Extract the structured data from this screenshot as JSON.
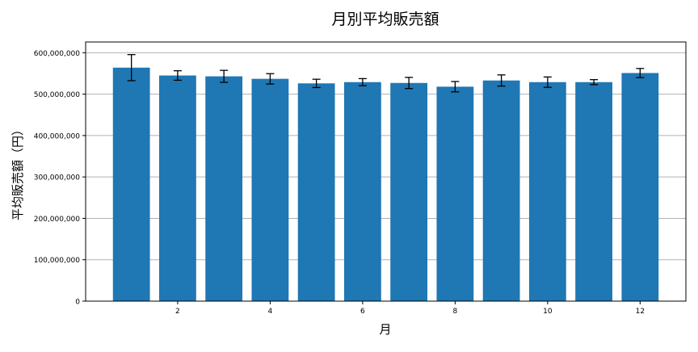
{
  "chart_data": {
    "type": "bar",
    "title": "月別平均販売額",
    "xlabel": "月",
    "ylabel": "平均販売額（円）",
    "x": [
      1,
      2,
      3,
      4,
      5,
      6,
      7,
      8,
      9,
      10,
      11,
      12
    ],
    "values": [
      564000000,
      545000000,
      543000000,
      537000000,
      526000000,
      529000000,
      527000000,
      518000000,
      533000000,
      529000000,
      529000000,
      551000000
    ],
    "errors": [
      31500000,
      11500000,
      14500000,
      12500000,
      10000000,
      8500000,
      13500000,
      12500000,
      13500000,
      12500000,
      6000000,
      11000000
    ],
    "xticks": [
      2,
      4,
      6,
      8,
      10,
      12
    ],
    "yticks": [
      0,
      100000000,
      200000000,
      300000000,
      400000000,
      500000000,
      600000000
    ],
    "ytick_labels": [
      "0",
      "100,000,000",
      "200,000,000",
      "300,000,000",
      "400,000,000",
      "500,000,000",
      "600,000,000"
    ],
    "xlim": [
      0.01,
      12.99
    ],
    "ylim": [
      0,
      626000000
    ],
    "grid": "y",
    "bar_color": "#1f77b4",
    "error_color": "#000000"
  }
}
